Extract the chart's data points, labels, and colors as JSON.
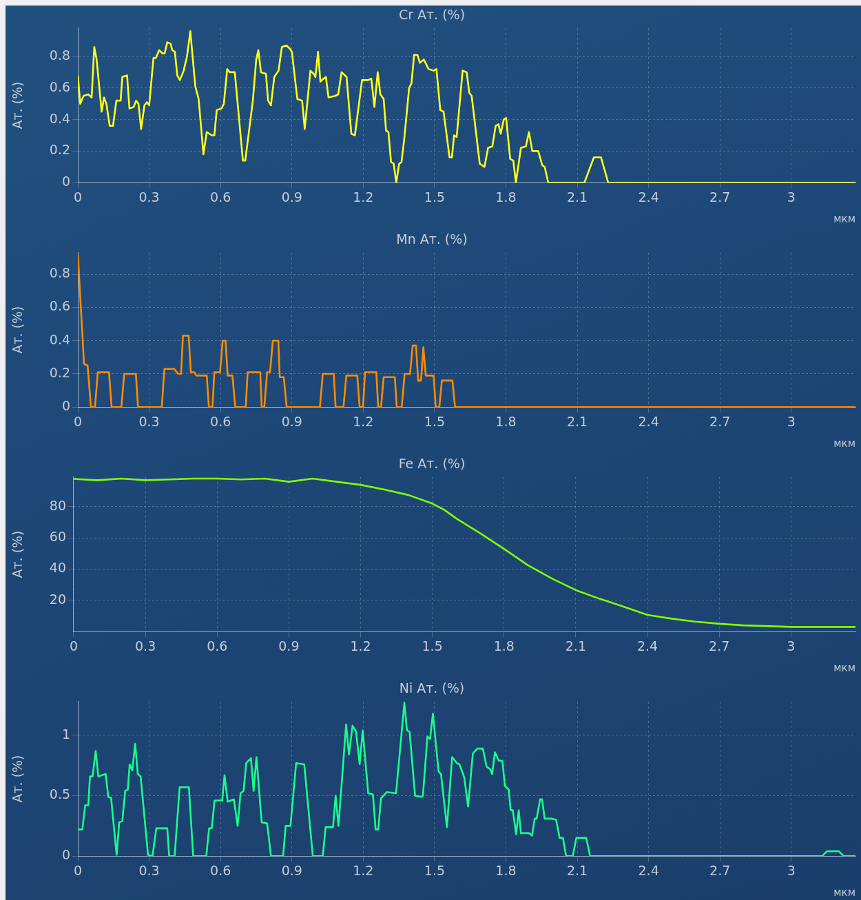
{
  "chart_data": [
    {
      "type": "line",
      "title": "Cr Ат. (%)",
      "ylabel": "Ат. (%)",
      "xlabel": "мкм",
      "color": "#ffff1a",
      "marker": "none",
      "line_style": "solid",
      "grid": true,
      "xlim": [
        0,
        3.27
      ],
      "ylim": [
        0,
        0.98
      ],
      "xticks": [
        0,
        0.3,
        0.6,
        0.9,
        1.2,
        1.5,
        1.8,
        2.1,
        2.4,
        2.7,
        3
      ],
      "yticks": [
        0,
        0.2,
        0.4,
        0.6,
        0.8
      ],
      "x": [
        0,
        0.01,
        0.024,
        0.044,
        0.058,
        0.069,
        0.079,
        0.1,
        0.11,
        0.12,
        0.134,
        0.148,
        0.162,
        0.18,
        0.187,
        0.207,
        0.217,
        0.235,
        0.245,
        0.255,
        0.266,
        0.28,
        0.29,
        0.3,
        0.318,
        0.328,
        0.342,
        0.356,
        0.365,
        0.376,
        0.39,
        0.397,
        0.408,
        0.418,
        0.429,
        0.445,
        0.459,
        0.473,
        0.494,
        0.508,
        0.528,
        0.542,
        0.563,
        0.574,
        0.584,
        0.604,
        0.614,
        0.628,
        0.639,
        0.66,
        0.694,
        0.704,
        0.736,
        0.75,
        0.759,
        0.77,
        0.791,
        0.8,
        0.812,
        0.826,
        0.844,
        0.858,
        0.877,
        0.891,
        0.9,
        0.923,
        0.943,
        0.954,
        0.978,
        0.992,
        0.999,
        1.01,
        1.02,
        1.033,
        1.043,
        1.054,
        1.082,
        1.095,
        1.109,
        1.13,
        1.15,
        1.165,
        1.195,
        1.22,
        1.234,
        1.247,
        1.261,
        1.272,
        1.286,
        1.296,
        1.306,
        1.317,
        1.328,
        1.339,
        1.351,
        1.361,
        1.372,
        1.393,
        1.403,
        1.414,
        1.428,
        1.438,
        1.455,
        1.475,
        1.496,
        1.508,
        1.524,
        1.538,
        1.563,
        1.573,
        1.582,
        1.593,
        1.618,
        1.635,
        1.646,
        1.656,
        1.69,
        1.71,
        1.725,
        1.743,
        1.757,
        1.769,
        1.778,
        1.791,
        1.801,
        1.818,
        1.831,
        1.842,
        1.863,
        1.884,
        1.897,
        1.911,
        1.936,
        1.953,
        1.963,
        1.978,
        2.13,
        2.17,
        2.2,
        2.23,
        3.27
      ],
      "values": [
        0.68,
        0.5,
        0.55,
        0.56,
        0.54,
        0.86,
        0.78,
        0.45,
        0.54,
        0.5,
        0.36,
        0.36,
        0.52,
        0.52,
        0.67,
        0.68,
        0.47,
        0.48,
        0.52,
        0.5,
        0.34,
        0.49,
        0.51,
        0.49,
        0.79,
        0.79,
        0.84,
        0.82,
        0.82,
        0.89,
        0.88,
        0.84,
        0.83,
        0.68,
        0.65,
        0.71,
        0.8,
        0.96,
        0.61,
        0.53,
        0.18,
        0.32,
        0.3,
        0.3,
        0.46,
        0.47,
        0.5,
        0.72,
        0.7,
        0.7,
        0.14,
        0.14,
        0.52,
        0.78,
        0.84,
        0.7,
        0.69,
        0.52,
        0.49,
        0.67,
        0.71,
        0.86,
        0.87,
        0.85,
        0.83,
        0.53,
        0.52,
        0.34,
        0.71,
        0.69,
        0.67,
        0.83,
        0.64,
        0.66,
        0.67,
        0.54,
        0.55,
        0.56,
        0.7,
        0.67,
        0.31,
        0.3,
        0.65,
        0.65,
        0.66,
        0.48,
        0.7,
        0.56,
        0.53,
        0.33,
        0.32,
        0.13,
        0.12,
        0,
        0.12,
        0.13,
        0.27,
        0.6,
        0.63,
        0.81,
        0.81,
        0.76,
        0.78,
        0.72,
        0.71,
        0.72,
        0.46,
        0.45,
        0.16,
        0.16,
        0.3,
        0.29,
        0.71,
        0.7,
        0.57,
        0.55,
        0.12,
        0.1,
        0.22,
        0.23,
        0.36,
        0.37,
        0.31,
        0.4,
        0.41,
        0.15,
        0.14,
        0,
        0.22,
        0.23,
        0.32,
        0.2,
        0.2,
        0.11,
        0.1,
        0,
        0,
        0.16,
        0.16,
        0,
        0
      ]
    },
    {
      "type": "line",
      "title": "Mn Ат. (%)",
      "ylabel": "Ат. (%)",
      "xlabel": "мкм",
      "color": "#ff8c00",
      "marker": "none",
      "line_style": "solid",
      "grid": true,
      "xlim": [
        0,
        3.27
      ],
      "ylim": [
        0,
        0.93
      ],
      "xticks": [
        0,
        0.3,
        0.6,
        0.9,
        1.2,
        1.5,
        1.8,
        2.1,
        2.4,
        2.7,
        3
      ],
      "yticks": [
        0,
        0.2,
        0.4,
        0.6,
        0.8
      ],
      "x": [
        0,
        0.026,
        0.041,
        0.055,
        0.072,
        0.084,
        0.131,
        0.142,
        0.183,
        0.195,
        0.244,
        0.253,
        0.353,
        0.364,
        0.405,
        0.422,
        0.434,
        0.442,
        0.466,
        0.475,
        0.489,
        0.498,
        0.542,
        0.551,
        0.566,
        0.574,
        0.598,
        0.609,
        0.621,
        0.63,
        0.65,
        0.662,
        0.706,
        0.714,
        0.767,
        0.773,
        0.784,
        0.796,
        0.808,
        0.82,
        0.843,
        0.849,
        0.866,
        0.878,
        1.018,
        1.03,
        1.076,
        1.084,
        1.117,
        1.129,
        1.175,
        1.185,
        1.199,
        1.208,
        1.255,
        1.263,
        1.275,
        1.286,
        1.333,
        1.341,
        1.362,
        1.374,
        1.397,
        1.408,
        1.422,
        1.431,
        1.443,
        1.453,
        1.463,
        1.496,
        1.505,
        1.52,
        1.531,
        1.575,
        1.586,
        3.27
      ],
      "values": [
        0.92,
        0.26,
        0.25,
        0,
        0,
        0.21,
        0.21,
        0,
        0,
        0.2,
        0.2,
        0,
        0,
        0.23,
        0.23,
        0.2,
        0.2,
        0.43,
        0.43,
        0.21,
        0.21,
        0.19,
        0.19,
        0,
        0,
        0.21,
        0.21,
        0.4,
        0.4,
        0.19,
        0.19,
        0,
        0,
        0.21,
        0.21,
        0,
        0,
        0.21,
        0.21,
        0.4,
        0.4,
        0.18,
        0.18,
        0,
        0,
        0.2,
        0.2,
        0,
        0,
        0.19,
        0.19,
        0,
        0,
        0.21,
        0.21,
        0,
        0,
        0.18,
        0.18,
        0,
        0,
        0.2,
        0.2,
        0.37,
        0.37,
        0.16,
        0.16,
        0.36,
        0.19,
        0.19,
        0,
        0,
        0.16,
        0.16,
        0,
        0
      ]
    },
    {
      "type": "line",
      "title": "Fe Ат. (%)",
      "ylabel": "Ат. (%)",
      "xlabel": "мкм",
      "color": "#80ff00",
      "marker": "none",
      "line_style": "solid",
      "grid": true,
      "xlim": [
        0,
        3.27
      ],
      "ylim": [
        0,
        99
      ],
      "xticks": [
        0,
        0.3,
        0.6,
        0.9,
        1.2,
        1.5,
        1.8,
        2.1,
        2.4,
        2.7,
        3
      ],
      "yticks": [
        20,
        40,
        60,
        80
      ],
      "x": [
        0,
        0.1,
        0.2,
        0.3,
        0.4,
        0.5,
        0.6,
        0.7,
        0.8,
        0.9,
        1,
        1.1,
        1.2,
        1.3,
        1.4,
        1.5,
        1.55,
        1.6,
        1.7,
        1.8,
        1.9,
        2,
        2.1,
        2.2,
        2.3,
        2.4,
        2.5,
        2.6,
        2.7,
        2.8,
        3,
        3.27
      ],
      "values": [
        97.8,
        97,
        98,
        97,
        97.5,
        98,
        98,
        97.5,
        98,
        96,
        98,
        96,
        94,
        91,
        87.5,
        82,
        78,
        72.5,
        63,
        53,
        42.5,
        34,
        26.6,
        21,
        16,
        10.7,
        8.3,
        6.4,
        5,
        4,
        3,
        3
      ]
    },
    {
      "type": "line",
      "title": "Ni Ат. (%)",
      "ylabel": "Ат. (%)",
      "xlabel": "мкм",
      "color": "#1aff8c",
      "marker": "none",
      "line_style": "solid",
      "grid": true,
      "xlim": [
        0,
        3.27
      ],
      "ylim": [
        0,
        1.28
      ],
      "xticks": [
        0,
        0.3,
        0.6,
        0.9,
        1.2,
        1.5,
        1.8,
        2.1,
        2.4,
        2.7,
        3
      ],
      "yticks": [
        0,
        0.5,
        1
      ],
      "x": [
        0,
        0.019,
        0.031,
        0.044,
        0.051,
        0.062,
        0.075,
        0.086,
        0.117,
        0.128,
        0.14,
        0.163,
        0.174,
        0.187,
        0.199,
        0.21,
        0.218,
        0.229,
        0.241,
        0.252,
        0.264,
        0.295,
        0.314,
        0.33,
        0.376,
        0.384,
        0.407,
        0.428,
        0.467,
        0.485,
        0.54,
        0.552,
        0.563,
        0.575,
        0.607,
        0.617,
        0.63,
        0.656,
        0.672,
        0.684,
        0.697,
        0.708,
        0.728,
        0.739,
        0.751,
        0.773,
        0.796,
        0.812,
        0.863,
        0.874,
        0.894,
        0.918,
        0.952,
        0.988,
        1.03,
        1.042,
        1.073,
        1.084,
        1.096,
        1.128,
        1.14,
        1.155,
        1.17,
        1.185,
        1.198,
        1.221,
        1.241,
        1.252,
        1.263,
        1.275,
        1.299,
        1.338,
        1.373,
        1.384,
        1.395,
        1.418,
        1.443,
        1.451,
        1.47,
        1.481,
        1.493,
        1.517,
        1.527,
        1.552,
        1.574,
        1.594,
        1.605,
        1.625,
        1.641,
        1.661,
        1.68,
        1.703,
        1.719,
        1.734,
        1.742,
        1.754,
        1.77,
        1.785,
        1.796,
        1.812,
        1.82,
        1.829,
        1.843,
        1.854,
        1.863,
        1.897,
        1.91,
        1.921,
        1.929,
        1.944,
        1.952,
        1.963,
        1.991,
        2.011,
        2.026,
        2.04,
        2.053,
        2.081,
        2.096,
        2.138,
        2.154,
        3.13,
        3.15,
        3.2,
        3.22,
        3.27
      ],
      "values": [
        0.22,
        0.22,
        0.42,
        0.42,
        0.66,
        0.66,
        0.87,
        0.66,
        0.68,
        0.49,
        0.48,
        0.01,
        0.28,
        0.29,
        0.54,
        0.55,
        0.76,
        0.71,
        0.93,
        0.68,
        0.66,
        0.01,
        0,
        0.23,
        0.23,
        0,
        0,
        0.57,
        0.57,
        0,
        0,
        0.23,
        0.23,
        0.46,
        0.46,
        0.67,
        0.45,
        0.47,
        0.25,
        0.52,
        0.54,
        0.77,
        0.81,
        0.54,
        0.82,
        0.28,
        0.27,
        0,
        0,
        0.25,
        0.25,
        0.77,
        0.76,
        0,
        0,
        0.24,
        0.24,
        0.5,
        0.25,
        1.09,
        0.84,
        1.08,
        1.03,
        0.76,
        1.04,
        0.52,
        0.51,
        0.22,
        0.22,
        0.48,
        0.53,
        0.52,
        1.27,
        1.04,
        1.03,
        0.5,
        0.49,
        0.5,
        0.99,
        0.97,
        1.18,
        0.7,
        0.68,
        0.24,
        0.82,
        0.77,
        0.76,
        0.65,
        0.41,
        0.85,
        0.89,
        0.89,
        0.74,
        0.72,
        0.68,
        0.86,
        0.79,
        0.79,
        0.58,
        0.55,
        0.38,
        0.38,
        0.18,
        0.38,
        0.19,
        0.19,
        0.17,
        0.31,
        0.31,
        0.47,
        0.47,
        0.31,
        0.31,
        0.3,
        0.15,
        0.15,
        0,
        0,
        0.15,
        0.15,
        0,
        0,
        0.04,
        0.04,
        0,
        0
      ]
    }
  ]
}
